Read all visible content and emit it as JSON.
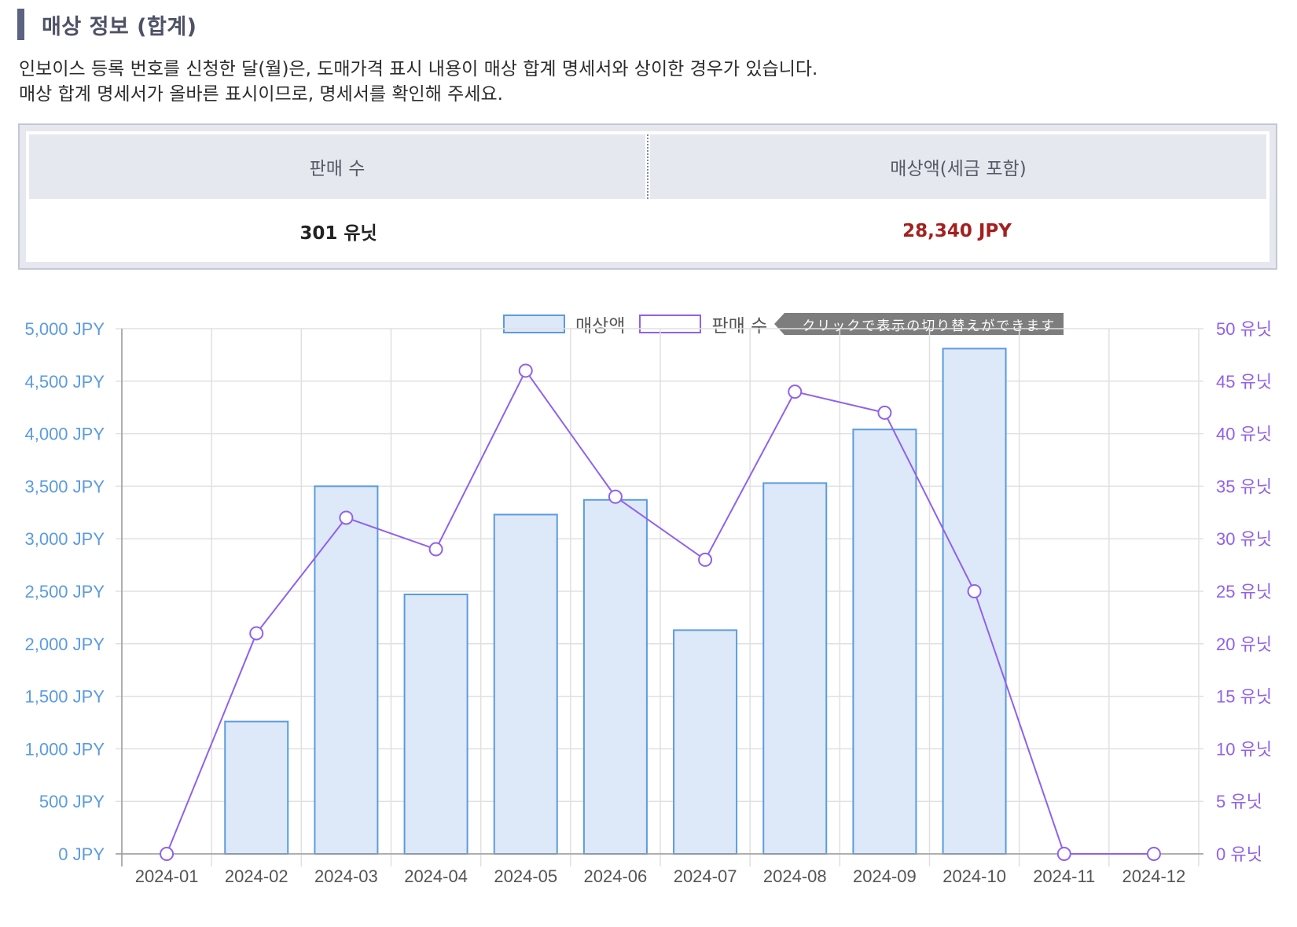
{
  "section": {
    "title": "매상 정보 (합계)"
  },
  "notice": {
    "line1": "인보이스 등록 번호를 신청한 달(월)은, 도매가격 표시 내용이 매상 합계 명세서와 상이한 경우가 있습니다.",
    "line2": "매상 합계 명세서가 올바른 표시이므로, 명세서를 확인해 주세요."
  },
  "summary": {
    "headers": [
      "판매 수",
      "매상액(세금 포함)"
    ],
    "values": [
      "301 유닛",
      "28,340 JPY"
    ]
  },
  "legend": {
    "sales_label": "매상액",
    "units_label": "판매 수",
    "hint": "クリックで表示の切り替えができます"
  },
  "colors": {
    "bar_fill": "#dde9f8",
    "bar_stroke": "#5b9be0",
    "line": "#9061ec",
    "left_axis_text": "#5b9be0",
    "right_axis_text": "#9061ec",
    "amount": "#a3201f"
  },
  "chart_data": {
    "type": "bar",
    "categories": [
      "2024-01",
      "2024-02",
      "2024-03",
      "2024-04",
      "2024-05",
      "2024-06",
      "2024-07",
      "2024-08",
      "2024-09",
      "2024-10",
      "2024-11",
      "2024-12"
    ],
    "series": [
      {
        "name": "매상액",
        "type": "bar",
        "axis": "left",
        "values": [
          0,
          1260,
          3500,
          2470,
          3230,
          3370,
          2130,
          3530,
          4040,
          4810,
          0,
          0
        ]
      },
      {
        "name": "판매 수",
        "type": "line",
        "axis": "right",
        "values": [
          0,
          21,
          32,
          29,
          46,
          34,
          28,
          44,
          42,
          25,
          0,
          0
        ]
      }
    ],
    "y_left": {
      "ylim": [
        0,
        5000
      ],
      "step": 500,
      "tick_suffix": " JPY"
    },
    "y_right": {
      "ylim": [
        0,
        50
      ],
      "step": 5,
      "tick_suffix": " 유닛"
    },
    "grid": true,
    "legend_position": "top"
  }
}
